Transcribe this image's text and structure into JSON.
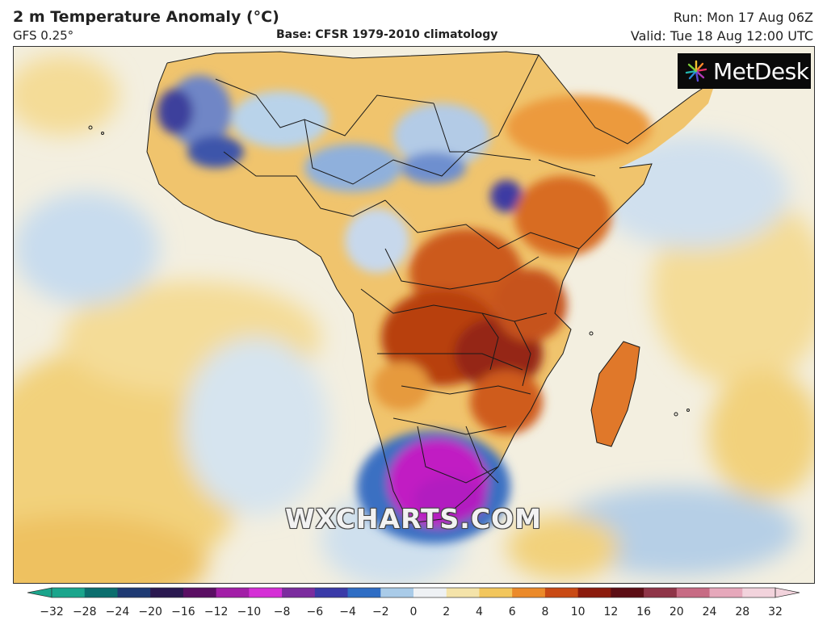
{
  "header": {
    "title": "2 m Temperature Anomaly (°C)",
    "model": "GFS 0.25°",
    "base": "Base: CFSR 1979-2010 climatology",
    "run": "Run: Mon 17 Aug 06Z",
    "valid": "Valid: Tue 18 Aug 12:00 UTC"
  },
  "logo": {
    "text": "MetDesk",
    "icon": "metdesk-starburst-icon"
  },
  "watermark": "WXCHARTS.COM",
  "map": {
    "region": "Africa",
    "colors": {
      "ocean_warm": "#f4dc97",
      "ocean_neutral": "#f3efe0",
      "ocean_cool": "#cfe0ee",
      "land_warm": "#f0b65a",
      "land_hot": "#d2611c",
      "land_very_hot": "#9c2a12",
      "land_cool": "#b9d3ea",
      "land_cold": "#3b63b3",
      "land_very_cold": "#6a2a9c",
      "extreme_cold": "#c11dc3",
      "border": "#1a1a1a"
    }
  },
  "scale": {
    "labels": [
      "−32",
      "−28",
      "−24",
      "−20",
      "−16",
      "−12",
      "−10",
      "−8",
      "−6",
      "−4",
      "−2",
      "0",
      "2",
      "4",
      "6",
      "8",
      "10",
      "12",
      "16",
      "20",
      "24",
      "28",
      "32"
    ],
    "colors": [
      "#1aa58c",
      "#0b6e6e",
      "#1f3a73",
      "#2a1950",
      "#5a0f63",
      "#a21ea7",
      "#d52fd6",
      "#7b2c9e",
      "#3a3aa8",
      "#2f6dc4",
      "#a9cbe8",
      "#eef1f4",
      "#f4e3a9",
      "#f2c65c",
      "#eb8a2a",
      "#c94a15",
      "#8b1b0d",
      "#5c0e15",
      "#8f3548",
      "#c76b84",
      "#e6a8bb",
      "#f2d3dc"
    ]
  }
}
